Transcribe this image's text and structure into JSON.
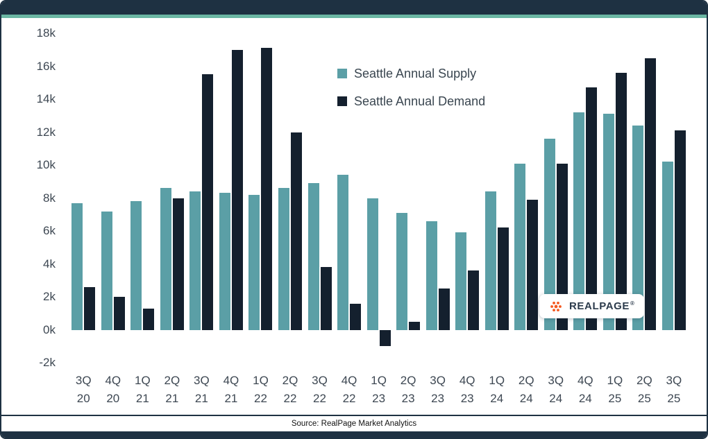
{
  "page": {
    "accent_navy": "#1e3142",
    "accent_teal": "#5b9fa6",
    "top_stripe_teal": "#6bb6a3"
  },
  "legend": [
    {
      "label": "Seattle Annual Supply",
      "color": "#5b9fa6"
    },
    {
      "label": "Seattle Annual Demand",
      "color": "#14202e"
    }
  ],
  "logo": {
    "text": "REALPAGE",
    "registered": "®",
    "dot_color": "#f4581f"
  },
  "footer": {
    "source": "Source: RealPage Market Analytics"
  },
  "chart_data": {
    "type": "bar",
    "title": "",
    "xlabel": "",
    "ylabel": "",
    "categories": [
      "3Q 20",
      "4Q 20",
      "1Q 21",
      "2Q 21",
      "3Q 21",
      "4Q 21",
      "1Q 22",
      "2Q 22",
      "3Q 22",
      "4Q 22",
      "1Q 23",
      "2Q 23",
      "3Q 23",
      "4Q 23",
      "1Q 24",
      "2Q 24",
      "3Q 24",
      "4Q 24",
      "1Q 25",
      "2Q 25",
      "3Q 25"
    ],
    "series": [
      {
        "name": "Seattle Annual Supply",
        "color": "#5b9fa6",
        "values": [
          7700,
          7200,
          7800,
          8600,
          8400,
          8300,
          8200,
          8600,
          8900,
          9400,
          8000,
          7100,
          6600,
          5900,
          8400,
          10100,
          11600,
          13200,
          13100,
          12400,
          10200
        ]
      },
      {
        "name": "Seattle Annual Demand",
        "color": "#14202e",
        "values": [
          2600,
          2000,
          1300,
          8000,
          15500,
          17000,
          17100,
          12000,
          3800,
          1600,
          -1000,
          500,
          2500,
          3600,
          6200,
          7900,
          10100,
          14700,
          15600,
          16500,
          12100
        ]
      }
    ],
    "ylim": [
      -2000,
      18000
    ],
    "ytick_step": 2000,
    "ytick_labels": [
      "-2k",
      "0k",
      "2k",
      "4k",
      "6k",
      "8k",
      "10k",
      "12k",
      "14k",
      "16k",
      "18k"
    ],
    "grid": false,
    "legend_position": "top-center"
  }
}
